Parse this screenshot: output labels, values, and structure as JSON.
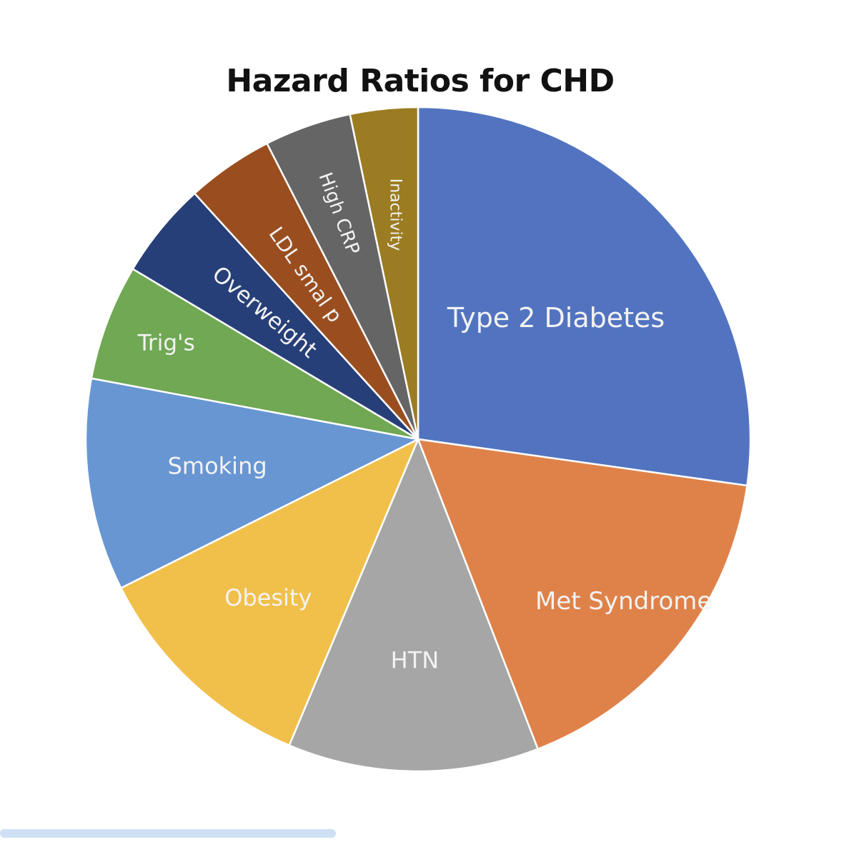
{
  "chart_data": {
    "type": "pie",
    "title": "Hazard Ratios for CHD",
    "start_angle_deg": 0,
    "direction": "clockwise",
    "slices": [
      {
        "label": "Type 2 Diabetes",
        "value": 2.9,
        "color": "#5274c0"
      },
      {
        "label": "Met Syndrome",
        "value": 1.8,
        "color": "#df824a"
      },
      {
        "label": "HTN",
        "value": 1.3,
        "color": "#a6a6a6"
      },
      {
        "label": "Obesity",
        "value": 1.2,
        "color": "#f1c04a"
      },
      {
        "label": "Smoking",
        "value": 1.1,
        "color": "#6896d3"
      },
      {
        "label": "Trig's",
        "value": 0.6,
        "color": "#70a854"
      },
      {
        "label": "Overweight",
        "value": 0.5,
        "color": "#273f78"
      },
      {
        "label": "LDL smal p",
        "value": 0.45,
        "color": "#9a4e1f"
      },
      {
        "label": "High CRP",
        "value": 0.45,
        "color": "#656565"
      },
      {
        "label": "Inactivity",
        "value": 0.35,
        "color": "#9b7c22"
      }
    ]
  }
}
